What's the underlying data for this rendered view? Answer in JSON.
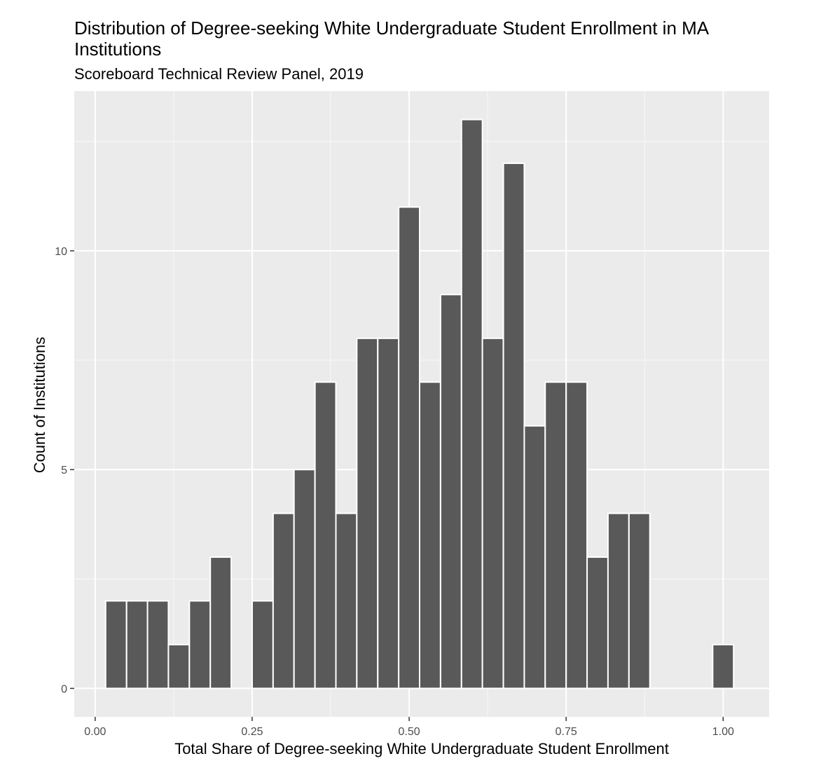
{
  "chart_data": {
    "type": "bar",
    "title_lines": [
      "Distribution of Degree-seeking White Undergraduate Student Enrollment in MA",
      "Institutions"
    ],
    "subtitle": "Scoreboard Technical Review Panel, 2019",
    "xlabel": "Total Share of Degree-seeking White Undergraduate Student Enrollment",
    "ylabel": "Count of Institutions",
    "x_ticks": [
      "0.00",
      "0.25",
      "0.50",
      "0.75",
      "1.00"
    ],
    "x_tick_values": [
      0.0,
      0.25,
      0.5,
      0.75,
      1.0
    ],
    "y_ticks": [
      "0",
      "5",
      "10"
    ],
    "y_tick_values": [
      0,
      5,
      10
    ],
    "xlim": [
      -0.0333,
      1.0733
    ],
    "ylim": [
      -0.65,
      13.65
    ],
    "grid": true,
    "bin_width": 0.0333,
    "bin_centers": [
      0.0333,
      0.0667,
      0.1,
      0.1333,
      0.1667,
      0.2,
      0.2333,
      0.2667,
      0.3,
      0.3333,
      0.3667,
      0.4,
      0.4333,
      0.4667,
      0.5,
      0.5333,
      0.5667,
      0.6,
      0.6333,
      0.6667,
      0.7,
      0.7333,
      0.7667,
      0.8,
      0.8333,
      0.8667,
      0.9,
      0.9333,
      0.9667,
      1.0
    ],
    "values": [
      2,
      2,
      2,
      1,
      2,
      3,
      0,
      2,
      4,
      5,
      7,
      4,
      8,
      8,
      11,
      7,
      9,
      13,
      8,
      12,
      6,
      7,
      7,
      3,
      4,
      4,
      0,
      0,
      0,
      1
    ],
    "colors": {
      "bar_fill": "#595959",
      "bar_stroke": "#ffffff",
      "panel": "#ebebeb",
      "grid": "#ffffff"
    }
  }
}
